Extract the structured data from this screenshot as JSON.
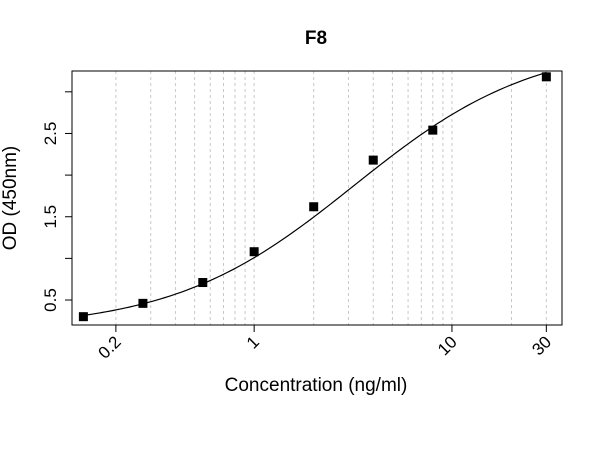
{
  "chart_data": {
    "type": "scatter",
    "title": "F8",
    "xlabel": "Concentration (ng/ml)",
    "ylabel": "OD (450nm)",
    "x_scale": "log",
    "xlim": [
      0.12,
      36
    ],
    "ylim": [
      0.2,
      3.25
    ],
    "x_ticks": [
      {
        "value": 0.2,
        "label": "0.2"
      },
      {
        "value": 1,
        "label": "1"
      },
      {
        "value": 10,
        "label": "10"
      },
      {
        "value": 30,
        "label": "30"
      }
    ],
    "y_ticks": [
      {
        "value": 0.5,
        "label": "0.5"
      },
      {
        "value": 1.0,
        "label": ""
      },
      {
        "value": 1.5,
        "label": "1.5"
      },
      {
        "value": 2.0,
        "label": ""
      },
      {
        "value": 2.5,
        "label": "2.5"
      },
      {
        "value": 3.0,
        "label": ""
      }
    ],
    "grid": "vertical-dashed",
    "series": [
      {
        "marker": "square",
        "color": "#000000",
        "x": [
          0.137,
          0.274,
          0.55,
          1.0,
          2.0,
          4.0,
          8.0,
          30.0
        ],
        "y": [
          0.3,
          0.46,
          0.71,
          1.08,
          1.62,
          2.18,
          2.54,
          3.18
        ]
      }
    ],
    "fit_curve": {
      "type": "4PL",
      "bottom": 0.15,
      "top": 3.6,
      "ec50": 3.2,
      "hill": 0.95
    }
  }
}
